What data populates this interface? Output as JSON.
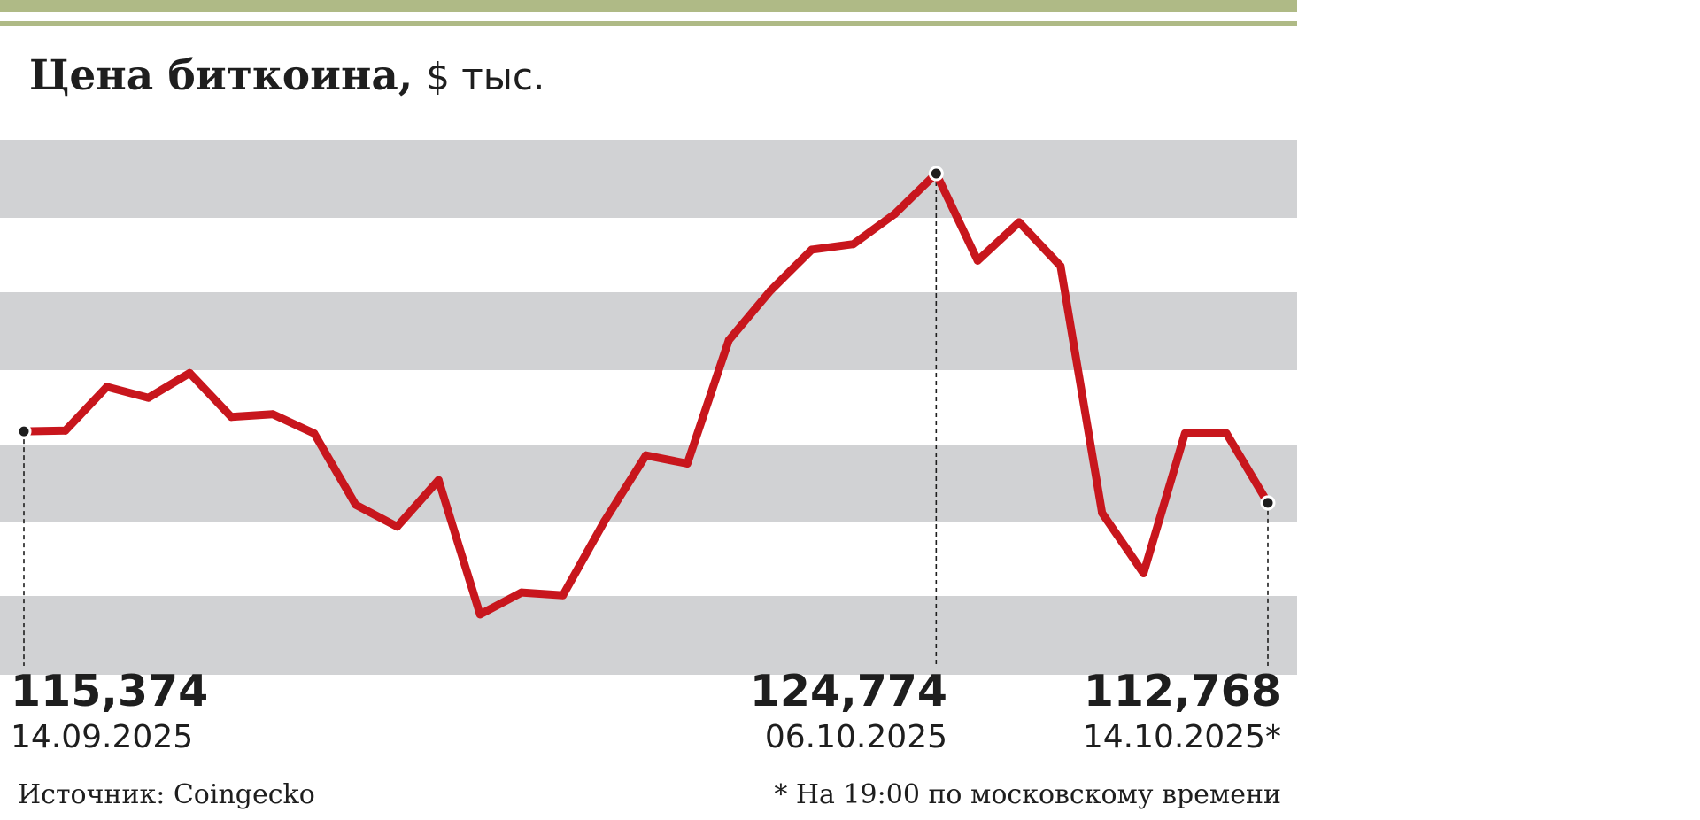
{
  "title": {
    "main": "Цена биткоина,",
    "unit": "$ тыс."
  },
  "callouts": {
    "start": {
      "value": "115,374",
      "date": "14.09.2025"
    },
    "peak": {
      "value": "124,774",
      "date": "06.10.2025"
    },
    "end": {
      "value": "112,768",
      "date": "14.10.2025*"
    }
  },
  "footer": {
    "source": "Источник: Coingecko",
    "note": "* На 19:00 по московскому времени"
  },
  "colors": {
    "line": "#c8161d",
    "band": "#d1d2d4",
    "top_rule": "#afba86",
    "text": "#1e1e1e"
  },
  "chart_data": {
    "type": "line",
    "title": "Цена биткоина, $ тыс.",
    "ylabel": "",
    "xlabel": "",
    "ylim": [
      106.5,
      126.0
    ],
    "grid": "alternating horizontal bands",
    "series": [
      {
        "x": [
          "14.09.2025",
          "15.09.2025",
          "16.09.2025",
          "17.09.2025",
          "18.09.2025",
          "19.09.2025",
          "20.09.2025",
          "21.09.2025",
          "22.09.2025",
          "23.09.2025",
          "24.09.2025",
          "25.09.2025",
          "26.09.2025",
          "27.09.2025",
          "28.09.2025",
          "29.09.2025",
          "30.09.2025",
          "01.10.2025",
          "02.10.2025",
          "03.10.2025",
          "04.10.2025",
          "05.10.2025",
          "06.10.2025",
          "07.10.2025",
          "08.10.2025",
          "09.10.2025",
          "10.10.2025",
          "11.10.2025",
          "12.10.2025",
          "13.10.2025",
          "14.10.2025"
        ],
        "values": [
          115.374,
          115.4,
          117.0,
          116.6,
          117.5,
          115.9,
          116.0,
          115.3,
          112.7,
          111.9,
          113.6,
          108.7,
          109.5,
          109.4,
          112.1,
          114.5,
          114.2,
          118.7,
          120.5,
          122.0,
          122.2,
          123.3,
          124.774,
          121.6,
          123.0,
          121.4,
          112.4,
          110.2,
          115.3,
          115.3,
          112.768
        ]
      }
    ],
    "highlighted_points": [
      {
        "x": "14.09.2025",
        "y": 115.374
      },
      {
        "x": "06.10.2025",
        "y": 124.774
      },
      {
        "x": "14.10.2025",
        "y": 112.768
      }
    ]
  }
}
